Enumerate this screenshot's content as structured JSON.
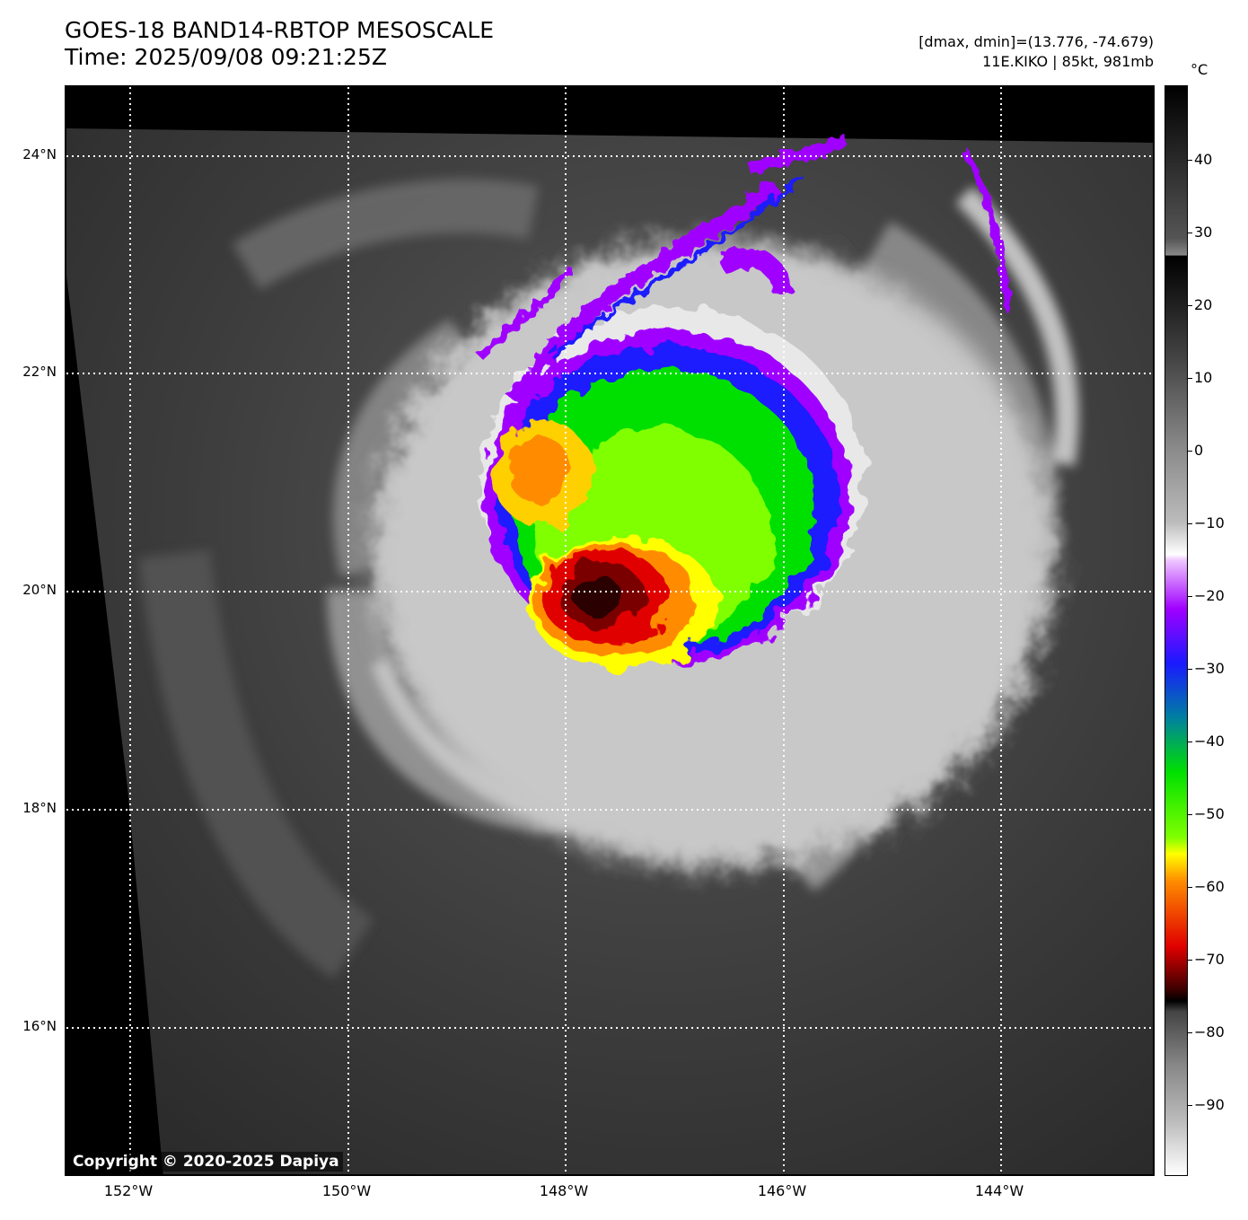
{
  "header": {
    "title_line1": "GOES-18 BAND14-RBTOP MESOSCALE",
    "title_line2": "Time: 2025/09/08 09:21:25Z",
    "range_text": "[dmax, dmin]=(13.776, -74.679)",
    "storm_text": "11E.KIKO | 85kt, 981mb"
  },
  "map": {
    "latitude_labels": [
      "24°N",
      "22°N",
      "20°N",
      "18°N",
      "16°N"
    ],
    "longitude_labels": [
      "152°W",
      "150°W",
      "148°W",
      "146°W",
      "144°W"
    ],
    "copyright": "Copyright © 2020-2025 Dapiya"
  },
  "colorbar": {
    "unit": "°C",
    "tick_labels": [
      "40",
      "30",
      "20",
      "10",
      "0",
      "−10",
      "−20",
      "−30",
      "−40",
      "−50",
      "−60",
      "−70",
      "−80",
      "−90"
    ],
    "colors": {
      "warm_gray_top": "#000000",
      "cold_white": "#ffffff",
      "purple": "#a000ff",
      "blue": "#1a1aff",
      "green": "#00e000",
      "yellow": "#ffff00",
      "orange": "#ff8c00",
      "red": "#e00000",
      "dark_red": "#3a0000"
    }
  }
}
